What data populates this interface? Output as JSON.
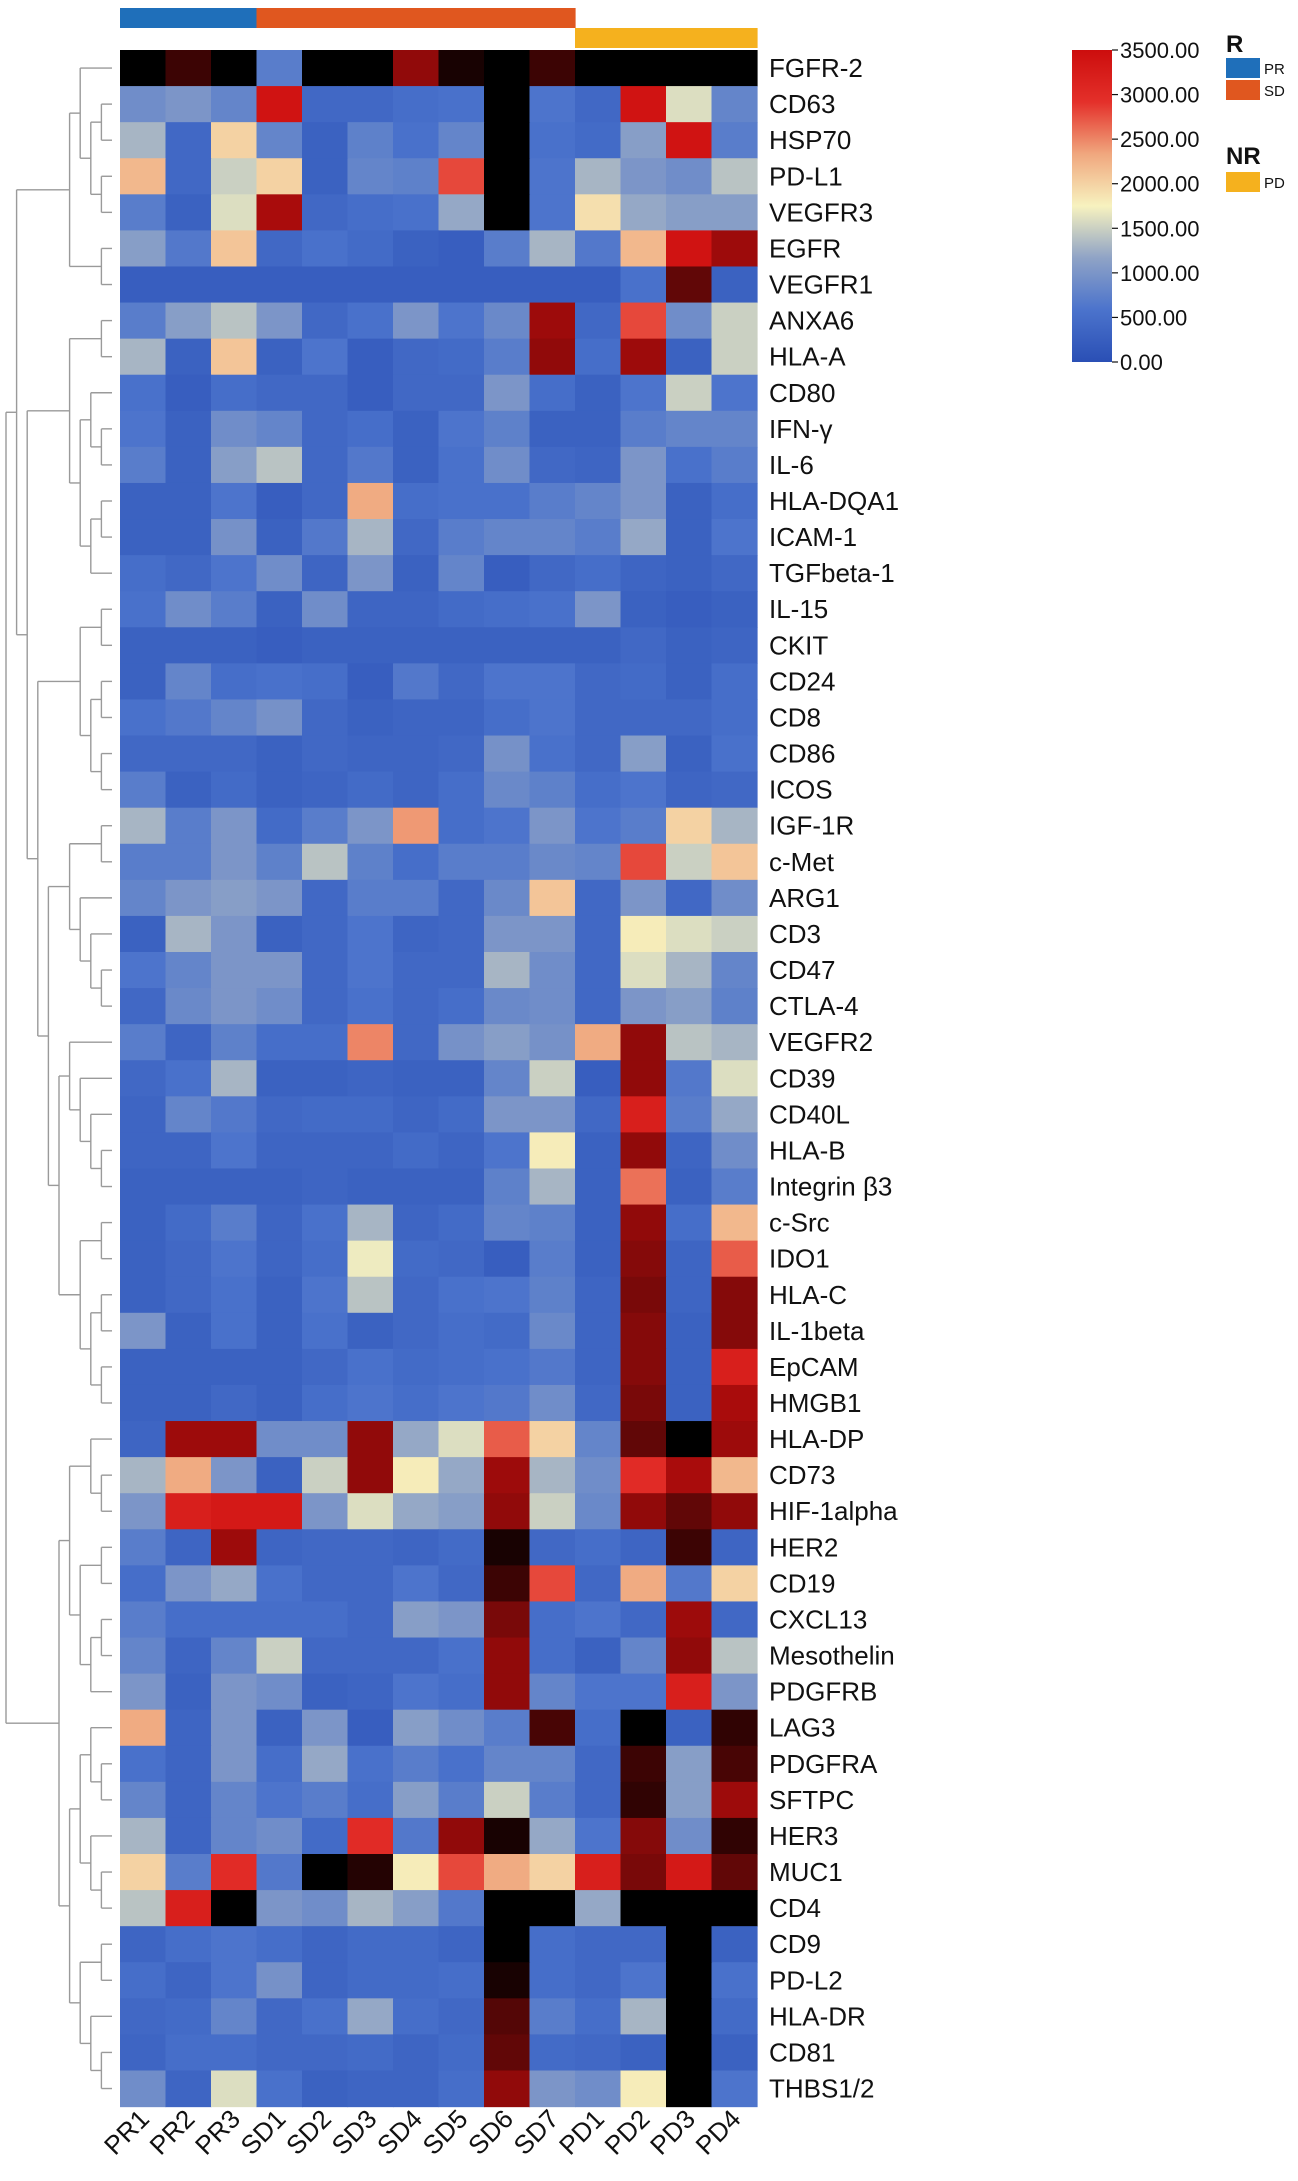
{
  "chart_data": {
    "type": "heatmap",
    "columns": [
      "PR1",
      "PR2",
      "PR3",
      "SD1",
      "SD2",
      "SD3",
      "SD4",
      "SD5",
      "SD6",
      "SD7",
      "PD1",
      "PD2",
      "PD3",
      "PD4"
    ],
    "column_groups": [
      "PR",
      "PR",
      "PR",
      "SD",
      "SD",
      "SD",
      "SD",
      "SD",
      "SD",
      "SD",
      "PD",
      "PD",
      "PD",
      "PD"
    ],
    "rows": [
      "FGFR-2",
      "CD63",
      "HSP70",
      "PD-L1",
      "VEGFR3",
      "EGFR",
      "VEGFR1",
      "ANXA6",
      "HLA-A",
      "CD80",
      "IFN-γ",
      "IL-6",
      "HLA-DQA1",
      "ICAM-1",
      "TGFbeta-1",
      "IL-15",
      "CKIT",
      "CD24",
      "CD8",
      "CD86",
      "ICOS",
      "IGF-1R",
      "c-Met",
      "ARG1",
      "CD3",
      "CD47",
      "CTLA-4",
      "VEGFR2",
      "CD39",
      "CD40L",
      "HLA-B",
      "Integrin β3",
      "c-Src",
      "IDO1",
      "HLA-C",
      "IL-1beta",
      "EpCAM",
      "HMGB1",
      "HLA-DP",
      "CD73",
      "HIF-1alpha",
      "HER2",
      "CD19",
      "CXCL13",
      "Mesothelin",
      "PDGFRB",
      "LAG3",
      "PDGFRA",
      "SFTPC",
      "HER3",
      "MUC1",
      "CD4",
      "CD9",
      "PD-L2",
      "HLA-DR",
      "CD81",
      "THBS1/2"
    ],
    "values": [
      [
        5000,
        4500,
        6000,
        700,
        6000,
        6000,
        3800,
        4800,
        6000,
        4500,
        6000,
        6000,
        6000,
        6000
      ],
      [
        900,
        1000,
        800,
        3400,
        400,
        400,
        500,
        550,
        6000,
        600,
        400,
        3400,
        1600,
        800
      ],
      [
        1300,
        400,
        2000,
        800,
        300,
        750,
        550,
        800,
        6000,
        550,
        450,
        1100,
        3400,
        700
      ],
      [
        2200,
        400,
        1500,
        2000,
        300,
        800,
        750,
        2800,
        6000,
        600,
        1300,
        1000,
        900,
        1400
      ],
      [
        700,
        300,
        1600,
        3600,
        400,
        500,
        550,
        1200,
        6000,
        600,
        1900,
        1200,
        1100,
        1100
      ],
      [
        1100,
        650,
        2100,
        400,
        550,
        450,
        300,
        250,
        700,
        1300,
        650,
        2200,
        3400,
        3700
      ],
      [
        250,
        250,
        250,
        250,
        250,
        250,
        250,
        250,
        250,
        250,
        250,
        550,
        4200,
        300
      ],
      [
        700,
        1100,
        1400,
        1000,
        400,
        550,
        1000,
        600,
        850,
        3700,
        400,
        2800,
        900,
        1500
      ],
      [
        1300,
        300,
        2100,
        300,
        600,
        250,
        400,
        450,
        700,
        3800,
        500,
        3700,
        300,
        1500
      ],
      [
        550,
        250,
        500,
        400,
        400,
        250,
        400,
        400,
        1000,
        500,
        300,
        600,
        1500,
        600
      ],
      [
        600,
        300,
        900,
        800,
        400,
        500,
        300,
        600,
        750,
        300,
        300,
        700,
        800,
        800
      ],
      [
        700,
        300,
        1100,
        1400,
        400,
        650,
        300,
        550,
        900,
        400,
        350,
        1000,
        550,
        700
      ],
      [
        300,
        300,
        600,
        250,
        400,
        2300,
        500,
        550,
        550,
        700,
        800,
        1000,
        300,
        500
      ],
      [
        300,
        300,
        950,
        300,
        650,
        1300,
        400,
        700,
        800,
        800,
        700,
        1200,
        300,
        600
      ],
      [
        500,
        400,
        600,
        900,
        350,
        1000,
        300,
        800,
        250,
        400,
        500,
        350,
        300,
        400
      ],
      [
        550,
        900,
        700,
        300,
        900,
        350,
        350,
        450,
        500,
        550,
        1000,
        300,
        250,
        300
      ],
      [
        300,
        300,
        300,
        250,
        300,
        300,
        300,
        300,
        300,
        300,
        300,
        400,
        300,
        350
      ],
      [
        300,
        800,
        500,
        550,
        500,
        250,
        650,
        400,
        600,
        600,
        400,
        450,
        300,
        500
      ],
      [
        550,
        650,
        800,
        950,
        400,
        300,
        350,
        350,
        500,
        600,
        400,
        400,
        400,
        500
      ],
      [
        400,
        400,
        400,
        300,
        400,
        350,
        350,
        400,
        950,
        550,
        400,
        1100,
        300,
        550
      ],
      [
        700,
        300,
        450,
        300,
        350,
        450,
        350,
        500,
        850,
        750,
        500,
        600,
        350,
        400
      ],
      [
        1300,
        700,
        1000,
        450,
        700,
        1000,
        2400,
        500,
        600,
        1000,
        600,
        700,
        2000,
        1300
      ],
      [
        700,
        700,
        1000,
        750,
        1400,
        750,
        500,
        700,
        700,
        850,
        800,
        2800,
        1500,
        2100
      ],
      [
        800,
        1000,
        1100,
        1000,
        400,
        700,
        700,
        400,
        850,
        2100,
        400,
        1000,
        400,
        900
      ],
      [
        300,
        1300,
        1000,
        300,
        400,
        600,
        350,
        400,
        1000,
        1000,
        400,
        1800,
        1600,
        1500
      ],
      [
        600,
        800,
        1000,
        1000,
        400,
        600,
        400,
        400,
        1300,
        900,
        400,
        1600,
        1300,
        800
      ],
      [
        400,
        850,
        1000,
        900,
        400,
        550,
        400,
        500,
        850,
        900,
        400,
        1000,
        1100,
        750
      ],
      [
        700,
        350,
        750,
        500,
        500,
        2500,
        400,
        950,
        1100,
        950,
        2300,
        3800,
        1400,
        1300
      ],
      [
        400,
        550,
        1300,
        300,
        300,
        350,
        300,
        300,
        800,
        1500,
        250,
        3800,
        650,
        1600
      ],
      [
        350,
        800,
        650,
        400,
        450,
        450,
        350,
        450,
        1000,
        1000,
        400,
        3200,
        700,
        1200
      ],
      [
        350,
        350,
        600,
        350,
        350,
        350,
        450,
        350,
        600,
        1800,
        300,
        3800,
        350,
        900
      ],
      [
        300,
        300,
        300,
        300,
        350,
        300,
        300,
        300,
        750,
        1300,
        300,
        2600,
        300,
        700
      ],
      [
        300,
        450,
        700,
        350,
        550,
        1300,
        350,
        450,
        800,
        750,
        300,
        3800,
        500,
        2200
      ],
      [
        300,
        400,
        600,
        350,
        500,
        1700,
        450,
        400,
        250,
        700,
        300,
        3900,
        350,
        2700
      ],
      [
        300,
        400,
        550,
        300,
        600,
        1400,
        400,
        550,
        600,
        750,
        350,
        4000,
        350,
        3900
      ],
      [
        1000,
        300,
        550,
        300,
        550,
        300,
        400,
        500,
        450,
        850,
        350,
        3900,
        300,
        3900
      ],
      [
        300,
        300,
        300,
        300,
        400,
        550,
        450,
        500,
        550,
        650,
        350,
        3900,
        300,
        3200
      ],
      [
        300,
        300,
        400,
        300,
        500,
        600,
        500,
        600,
        650,
        900,
        400,
        4000,
        300,
        3600
      ],
      [
        350,
        3700,
        3700,
        900,
        900,
        3800,
        1200,
        1600,
        2700,
        2000,
        800,
        4200,
        5200,
        3700
      ],
      [
        1300,
        2300,
        1000,
        300,
        1500,
        3800,
        1800,
        1200,
        3700,
        1300,
        900,
        3000,
        3600,
        2200
      ],
      [
        1000,
        3200,
        3300,
        3300,
        1000,
        1600,
        1200,
        1100,
        3800,
        1500,
        850,
        3800,
        4200,
        3800
      ],
      [
        700,
        350,
        3700,
        350,
        400,
        400,
        350,
        450,
        4800,
        400,
        500,
        350,
        4500,
        350
      ],
      [
        500,
        1000,
        1200,
        550,
        400,
        400,
        600,
        400,
        4500,
        2800,
        400,
        2300,
        650,
        2000
      ],
      [
        700,
        500,
        500,
        500,
        500,
        400,
        1100,
        1000,
        4000,
        500,
        600,
        400,
        3700,
        400
      ],
      [
        800,
        350,
        800,
        1500,
        400,
        400,
        400,
        550,
        3800,
        500,
        300,
        800,
        3800,
        1400
      ],
      [
        1000,
        300,
        1000,
        900,
        300,
        350,
        600,
        500,
        3800,
        800,
        600,
        600,
        3200,
        1000
      ],
      [
        2300,
        350,
        1000,
        300,
        1000,
        250,
        1100,
        900,
        700,
        4400,
        500,
        6500,
        300,
        4600
      ],
      [
        550,
        350,
        1000,
        500,
        1200,
        550,
        700,
        550,
        800,
        800,
        400,
        4500,
        1100,
        4400
      ],
      [
        800,
        350,
        800,
        600,
        700,
        500,
        1100,
        700,
        1500,
        700,
        400,
        4600,
        1100,
        3700
      ],
      [
        1300,
        350,
        800,
        900,
        450,
        3000,
        650,
        3800,
        4800,
        1200,
        600,
        3900,
        900,
        4600
      ],
      [
        2000,
        700,
        3000,
        650,
        5200,
        4700,
        1800,
        2800,
        2300,
        2000,
        3200,
        4000,
        3300,
        4200
      ],
      [
        1400,
        3200,
        6500,
        1000,
        900,
        1300,
        1100,
        650,
        6500,
        5500,
        1200,
        5200,
        6000,
        6000
      ],
      [
        350,
        500,
        600,
        500,
        350,
        450,
        450,
        350,
        5000,
        500,
        400,
        400,
        6000,
        300
      ],
      [
        500,
        350,
        600,
        950,
        350,
        450,
        450,
        500,
        4800,
        500,
        400,
        600,
        6000,
        550
      ],
      [
        400,
        450,
        800,
        400,
        550,
        1200,
        500,
        400,
        4300,
        700,
        500,
        1300,
        6000,
        450
      ],
      [
        350,
        500,
        500,
        400,
        400,
        450,
        350,
        450,
        4200,
        450,
        400,
        300,
        6000,
        300
      ],
      [
        900,
        350,
        1600,
        550,
        300,
        350,
        350,
        500,
        3800,
        1000,
        900,
        1800,
        6000,
        600
      ]
    ],
    "column_annotation": {
      "groups": [
        {
          "name": "PR",
          "color": "#1f6fba"
        },
        {
          "name": "SD",
          "color": "#e0571f"
        },
        {
          "name": "PD",
          "color": "#f5b11e"
        }
      ],
      "legend_title_1": "R",
      "legend_title_2": "NR"
    },
    "color_scale": {
      "min": 0,
      "max": 3500,
      "ticks": [
        "3500.00",
        "3000.00",
        "2500.00",
        "2000.00",
        "1500.00",
        "1000.00",
        "500.00",
        "0.00"
      ],
      "colors": [
        "#2a4fb5",
        "#4b73cc",
        "#8fa3c6",
        "#f7f2bf",
        "#f0a77e",
        "#e4302a",
        "#cc0d0d"
      ],
      "beyond_max_color": "#000000"
    },
    "row_dendrogram": true
  }
}
